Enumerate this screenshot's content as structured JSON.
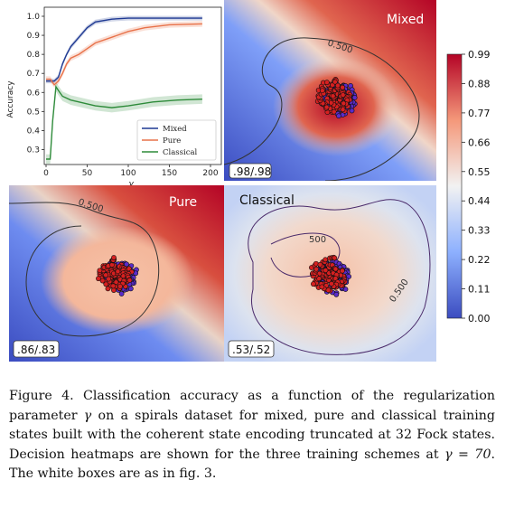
{
  "colors": {
    "mixed": "#1f3a93",
    "pure": "#e8724a",
    "classical": "#2e8b3a",
    "red_points": "#d62020",
    "blue_points": "#5b2bc9",
    "heat_low": "#3b4cc0",
    "heat_mid": "#f2f2f2",
    "heat_high": "#b40426"
  },
  "panels": {
    "mixed": {
      "title": "Mixed",
      "score": ".98/.98",
      "contour": "0.500"
    },
    "pure": {
      "title": "Pure",
      "score": ".86/.83",
      "contour": "0.500"
    },
    "classical": {
      "title": "Classical",
      "score": ".53/.52",
      "contour": "0.500",
      "contour2": "0.500",
      "contour3": "500"
    }
  },
  "chart_data": [
    {
      "type": "line",
      "xlabel": "γ",
      "ylabel": "Accuracy",
      "xlim": [
        0,
        200
      ],
      "ylim": [
        0.25,
        1.0
      ],
      "x_ticks": [
        "0",
        "50",
        "100",
        "150",
        "200"
      ],
      "y_ticks": [
        "0.3",
        "0.4",
        "0.5",
        "0.6",
        "0.7",
        "0.8",
        "0.9",
        "1.0"
      ],
      "legend_position": "bottom-right",
      "series": [
        {
          "name": "Mixed",
          "x": [
            0,
            5,
            10,
            15,
            20,
            25,
            30,
            40,
            50,
            60,
            80,
            100,
            150,
            190
          ],
          "y": [
            0.66,
            0.66,
            0.66,
            0.68,
            0.75,
            0.8,
            0.84,
            0.89,
            0.94,
            0.97,
            0.985,
            0.99,
            0.99,
            0.99
          ]
        },
        {
          "name": "Pure",
          "x": [
            0,
            5,
            10,
            15,
            20,
            25,
            30,
            40,
            50,
            60,
            80,
            100,
            120,
            150,
            190
          ],
          "y": [
            0.67,
            0.67,
            0.64,
            0.66,
            0.7,
            0.75,
            0.78,
            0.8,
            0.83,
            0.86,
            0.89,
            0.92,
            0.94,
            0.955,
            0.96
          ]
        },
        {
          "name": "Classical",
          "x": [
            0,
            5,
            8,
            12,
            15,
            20,
            30,
            40,
            60,
            80,
            100,
            130,
            160,
            190
          ],
          "y": [
            0.25,
            0.25,
            0.45,
            0.63,
            0.61,
            0.58,
            0.56,
            0.55,
            0.53,
            0.52,
            0.53,
            0.55,
            0.56,
            0.565
          ]
        }
      ]
    },
    {
      "type": "heatmap",
      "colorbar_ticks": [
        "0.00",
        "0.11",
        "0.22",
        "0.33",
        "0.44",
        "0.55",
        "0.66",
        "0.77",
        "0.88",
        "0.99"
      ],
      "colorbar_range": [
        0.0,
        0.99
      ]
    }
  ],
  "caption": {
    "label": "Figure 4.",
    "text_1": "Classification accuracy as a function of the regularization parameter ",
    "gamma": "γ",
    "text_2": " on a spirals dataset for mixed, pure and classical training states built with the coherent state encoding truncated at 32 Fock states. Decision heatmaps are shown for the three training schemes at ",
    "gamma_eq": "γ = 70",
    "text_3": ". The white boxes are as in fig. 3."
  }
}
